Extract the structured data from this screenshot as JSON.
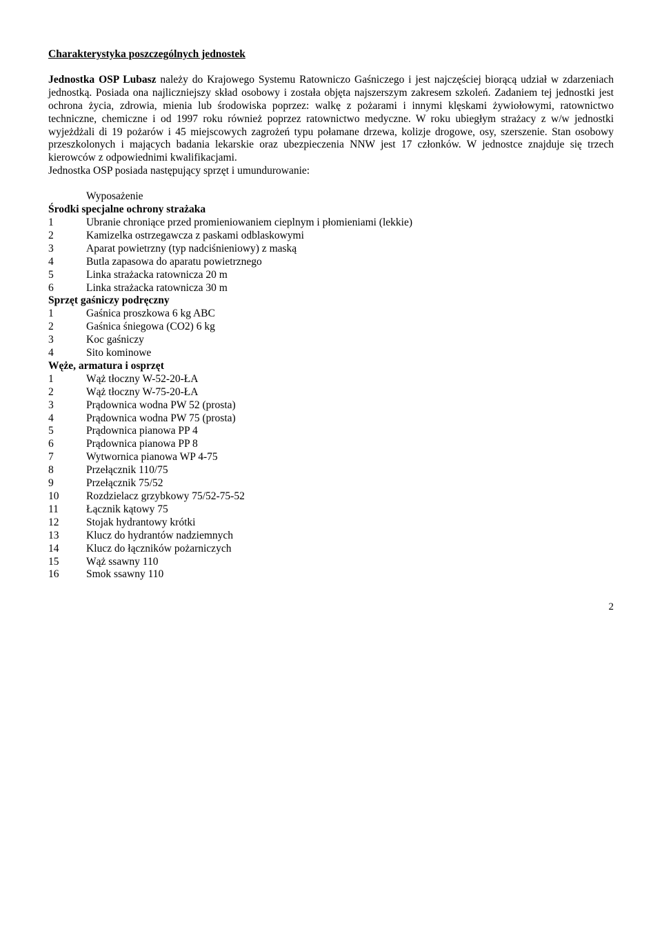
{
  "title": "Charakterystyka poszczególnych jednostek",
  "para": {
    "lead": "Jednostka OSP Lubasz",
    "body": " należy do Krajowego Systemu Ratowniczo Gaśniczego i jest najczęściej biorącą udział w zdarzeniach jednostką. Posiada ona najliczniejszy skład osobowy  i została objęta najszerszym zakresem szkoleń. Zadaniem tej jednostki jest ochrona życia, zdrowia, mienia lub środowiska poprzez: walkę z pożarami i innymi klęskami żywiołowymi, ratownictwo techniczne, chemiczne i od 1997 roku również poprzez ratownictwo medyczne. W roku ubiegłym  strażacy z w/w jednostki wyjeżdżali di 19 pożarów i 45 miejscowych zagrożeń typu połamane drzewa, kolizje drogowe, osy, szerszenie. Stan osobowy   przeszkolonych i mających badania lekarskie oraz ubezpieczenia NNW jest 17 członków. W jednostce znajduje się trzech kierowców z odpowiednimi kwalifikacjami."
  },
  "equip_line": "Jednostka OSP posiada następujący sprzęt i umundurowanie:",
  "wyposazenie_label": "Wyposażenie",
  "sections": [
    {
      "heading": "Środki specjalne ochrony strażaka",
      "items": [
        "Ubranie chroniące przed promieniowaniem cieplnym i płomieniami (lekkie)",
        "Kamizelka ostrzegawcza z paskami odblaskowymi",
        "Aparat powietrzny (typ nadciśnieniowy) z maską",
        "Butla zapasowa do aparatu powietrznego",
        "Linka strażacka ratownicza 20 m",
        "Linka strażacka ratownicza 30 m"
      ]
    },
    {
      "heading": "Sprzęt gaśniczy podręczny",
      "items": [
        "Gaśnica proszkowa 6 kg ABC",
        "Gaśnica śniegowa (CO2) 6 kg",
        "Koc gaśniczy",
        "Sito kominowe"
      ]
    },
    {
      "heading": "Węże, armatura i osprzęt",
      "items": [
        "Wąż tłoczny W-52-20-ŁA",
        "Wąż tłoczny W-75-20-ŁA",
        "Prądownica wodna PW 52 (prosta)",
        "Prądownica wodna PW 75 (prosta)",
        "Prądownica pianowa PP 4",
        "Prądownica pianowa PP 8",
        "Wytwornica pianowa WP 4-75",
        "Przełącznik 110/75",
        "Przełącznik 75/52",
        "Rozdzielacz grzybkowy 75/52-75-52",
        "Łącznik kątowy 75",
        "Stojak hydrantowy krótki",
        "Klucz do hydrantów nadziemnych",
        "Klucz do łączników pożarniczych",
        "Wąż ssawny 110",
        "Smok ssawny 110"
      ]
    }
  ],
  "page_number": "2"
}
